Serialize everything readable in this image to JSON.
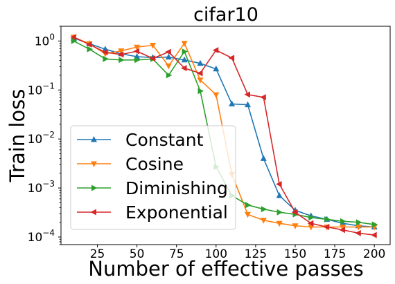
{
  "chart_data": {
    "type": "line",
    "title": "cifar10",
    "xlabel": "Number of effective passes",
    "ylabel": "Train loss",
    "xlim": [
      2,
      210
    ],
    "ylim": [
      7e-05,
      2
    ],
    "yscale": "log",
    "grid": false,
    "legend_position": "lower-left",
    "x_ticks": [
      {
        "value": 25,
        "label": "25"
      },
      {
        "value": 50,
        "label": "50"
      },
      {
        "value": 75,
        "label": "75"
      },
      {
        "value": 100,
        "label": "100"
      },
      {
        "value": 125,
        "label": "125"
      },
      {
        "value": 150,
        "label": "150"
      },
      {
        "value": 175,
        "label": "175"
      },
      {
        "value": 200,
        "label": "200"
      }
    ],
    "y_ticks": [
      {
        "value": 0.0001,
        "base": "10",
        "exp": "−4"
      },
      {
        "value": 0.001,
        "base": "10",
        "exp": "−3"
      },
      {
        "value": 0.01,
        "base": "10",
        "exp": "−2"
      },
      {
        "value": 0.1,
        "base": "10",
        "exp": "−1"
      },
      {
        "value": 1,
        "base": "10",
        "exp": "0"
      }
    ],
    "x": [
      10,
      20,
      30,
      40,
      50,
      60,
      70,
      80,
      90,
      100,
      110,
      120,
      130,
      140,
      150,
      160,
      170,
      180,
      190,
      200
    ],
    "series": [
      {
        "name": "Constant",
        "color": "#1f77b4",
        "marker": "triangle-up",
        "values": [
          1.15,
          0.88,
          0.68,
          0.55,
          0.48,
          0.46,
          0.47,
          0.41,
          0.35,
          0.27,
          0.052,
          0.05,
          0.004,
          0.0007,
          0.00035,
          0.00027,
          0.00023,
          0.00019,
          0.00017,
          0.00016
        ]
      },
      {
        "name": "Cosine",
        "color": "#ff7f0e",
        "marker": "triangle-down",
        "values": [
          1.2,
          0.88,
          0.55,
          0.63,
          0.75,
          0.82,
          0.31,
          0.9,
          0.16,
          0.08,
          0.0019,
          0.00029,
          0.00022,
          0.00019,
          0.00017,
          0.00016,
          0.00016,
          0.00016,
          0.00016,
          0.00016
        ]
      },
      {
        "name": "Diminishing",
        "color": "#2ca02c",
        "marker": "triangle-right",
        "values": [
          1.0,
          0.68,
          0.43,
          0.41,
          0.41,
          0.43,
          0.2,
          0.61,
          0.095,
          0.0027,
          0.0007,
          0.00045,
          0.00037,
          0.00032,
          0.00029,
          0.00025,
          0.00023,
          0.00021,
          0.0002,
          0.00018
        ]
      },
      {
        "name": "Exponential",
        "color": "#d62728",
        "marker": "triangle-left",
        "values": [
          1.2,
          0.85,
          0.59,
          0.53,
          0.62,
          0.44,
          0.6,
          0.28,
          0.22,
          0.65,
          0.45,
          0.081,
          0.071,
          0.0012,
          0.00032,
          0.00019,
          0.00016,
          0.00014,
          0.00012,
          0.00011
        ]
      }
    ]
  }
}
